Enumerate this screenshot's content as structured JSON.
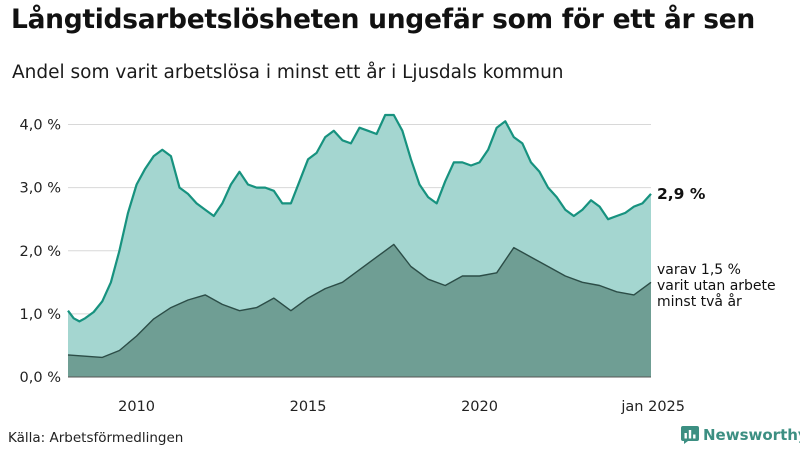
{
  "title": "Långtidsarbetslösheten ungefär som för ett år sen",
  "subtitle": "Andel som varit arbetslösa i minst ett år i Ljusdals kommun",
  "source": "Källa: Arbetsförmedlingen",
  "brand": {
    "name": "Newsworthy",
    "icon": "newsworthy-logo-icon"
  },
  "colors": {
    "total_fill": "#a4d6d0",
    "total_line": "#17927f",
    "longterm_fill": "#6f9e94",
    "longterm_line": "#2c4d47",
    "grid": "#d8d8d8",
    "brand": "#3c8f82"
  },
  "chart_data": {
    "type": "area",
    "xlim": [
      "2008-01",
      "2025-01"
    ],
    "ylim": [
      0,
      4.2
    ],
    "grid": true,
    "y_ticks": [
      {
        "value": 0,
        "label": "0,0 %"
      },
      {
        "value": 1,
        "label": "1,0 %"
      },
      {
        "value": 2,
        "label": "2,0 %"
      },
      {
        "value": 3,
        "label": "3,0 %"
      },
      {
        "value": 4,
        "label": "4,0 %"
      }
    ],
    "x_ticks": [
      {
        "value": "2010-01",
        "label": "2010"
      },
      {
        "value": "2015-01",
        "label": "2015"
      },
      {
        "value": "2020-01",
        "label": "2020"
      },
      {
        "value": "2025-01",
        "label": "jan 2025"
      }
    ],
    "series": [
      {
        "values": [
          [
            "2008-01",
            1.05
          ],
          [
            "2008-03",
            0.93
          ],
          [
            "2008-05",
            0.88
          ],
          [
            "2008-07",
            0.93
          ],
          [
            "2008-10",
            1.03
          ],
          [
            "2009-01",
            1.2
          ],
          [
            "2009-04",
            1.5
          ],
          [
            "2009-07",
            2.0
          ],
          [
            "2009-10",
            2.6
          ],
          [
            "2010-01",
            3.05
          ],
          [
            "2010-04",
            3.3
          ],
          [
            "2010-07",
            3.5
          ],
          [
            "2010-10",
            3.6
          ],
          [
            "2011-01",
            3.5
          ],
          [
            "2011-04",
            3.0
          ],
          [
            "2011-07",
            2.9
          ],
          [
            "2011-10",
            2.75
          ],
          [
            "2012-01",
            2.65
          ],
          [
            "2012-04",
            2.55
          ],
          [
            "2012-07",
            2.75
          ],
          [
            "2012-10",
            3.05
          ],
          [
            "2013-01",
            3.25
          ],
          [
            "2013-04",
            3.05
          ],
          [
            "2013-07",
            3.0
          ],
          [
            "2013-10",
            3.0
          ],
          [
            "2014-01",
            2.95
          ],
          [
            "2014-04",
            2.75
          ],
          [
            "2014-07",
            2.75
          ],
          [
            "2014-10",
            3.1
          ],
          [
            "2015-01",
            3.45
          ],
          [
            "2015-04",
            3.55
          ],
          [
            "2015-07",
            3.8
          ],
          [
            "2015-10",
            3.9
          ],
          [
            "2016-01",
            3.75
          ],
          [
            "2016-04",
            3.7
          ],
          [
            "2016-07",
            3.95
          ],
          [
            "2016-10",
            3.9
          ],
          [
            "2017-01",
            3.85
          ],
          [
            "2017-04",
            4.15
          ],
          [
            "2017-07",
            4.15
          ],
          [
            "2017-10",
            3.9
          ],
          [
            "2018-01",
            3.45
          ],
          [
            "2018-04",
            3.05
          ],
          [
            "2018-07",
            2.85
          ],
          [
            "2018-10",
            2.75
          ],
          [
            "2019-01",
            3.1
          ],
          [
            "2019-04",
            3.4
          ],
          [
            "2019-07",
            3.4
          ],
          [
            "2019-10",
            3.35
          ],
          [
            "2020-01",
            3.4
          ],
          [
            "2020-04",
            3.6
          ],
          [
            "2020-07",
            3.95
          ],
          [
            "2020-10",
            4.05
          ],
          [
            "2021-01",
            3.8
          ],
          [
            "2021-04",
            3.7
          ],
          [
            "2021-07",
            3.4
          ],
          [
            "2021-10",
            3.25
          ],
          [
            "2022-01",
            3.0
          ],
          [
            "2022-04",
            2.85
          ],
          [
            "2022-07",
            2.65
          ],
          [
            "2022-10",
            2.55
          ],
          [
            "2023-01",
            2.65
          ],
          [
            "2023-04",
            2.8
          ],
          [
            "2023-07",
            2.7
          ],
          [
            "2023-10",
            2.5
          ],
          [
            "2024-01",
            2.55
          ],
          [
            "2024-04",
            2.6
          ],
          [
            "2024-07",
            2.7
          ],
          [
            "2024-10",
            2.75
          ],
          [
            "2025-01",
            2.9
          ]
        ]
      },
      {
        "values": [
          [
            "2008-01",
            0.35
          ],
          [
            "2008-07",
            0.33
          ],
          [
            "2009-01",
            0.31
          ],
          [
            "2009-07",
            0.42
          ],
          [
            "2010-01",
            0.65
          ],
          [
            "2010-07",
            0.92
          ],
          [
            "2011-01",
            1.1
          ],
          [
            "2011-07",
            1.22
          ],
          [
            "2012-01",
            1.3
          ],
          [
            "2012-07",
            1.15
          ],
          [
            "2013-01",
            1.05
          ],
          [
            "2013-07",
            1.1
          ],
          [
            "2014-01",
            1.25
          ],
          [
            "2014-07",
            1.05
          ],
          [
            "2015-01",
            1.25
          ],
          [
            "2015-07",
            1.4
          ],
          [
            "2016-01",
            1.5
          ],
          [
            "2016-07",
            1.7
          ],
          [
            "2017-01",
            1.9
          ],
          [
            "2017-07",
            2.1
          ],
          [
            "2018-01",
            1.75
          ],
          [
            "2018-07",
            1.55
          ],
          [
            "2019-01",
            1.45
          ],
          [
            "2019-07",
            1.6
          ],
          [
            "2020-01",
            1.6
          ],
          [
            "2020-07",
            1.65
          ],
          [
            "2021-01",
            2.05
          ],
          [
            "2021-07",
            1.9
          ],
          [
            "2022-01",
            1.75
          ],
          [
            "2022-07",
            1.6
          ],
          [
            "2023-01",
            1.5
          ],
          [
            "2023-07",
            1.45
          ],
          [
            "2024-01",
            1.35
          ],
          [
            "2024-07",
            1.3
          ],
          [
            "2025-01",
            1.5
          ]
        ]
      }
    ],
    "end_labels": {
      "total": "2,9 %",
      "longterm": [
        "varav 1,5 %",
        "varit utan arbete",
        "minst två år"
      ]
    }
  }
}
